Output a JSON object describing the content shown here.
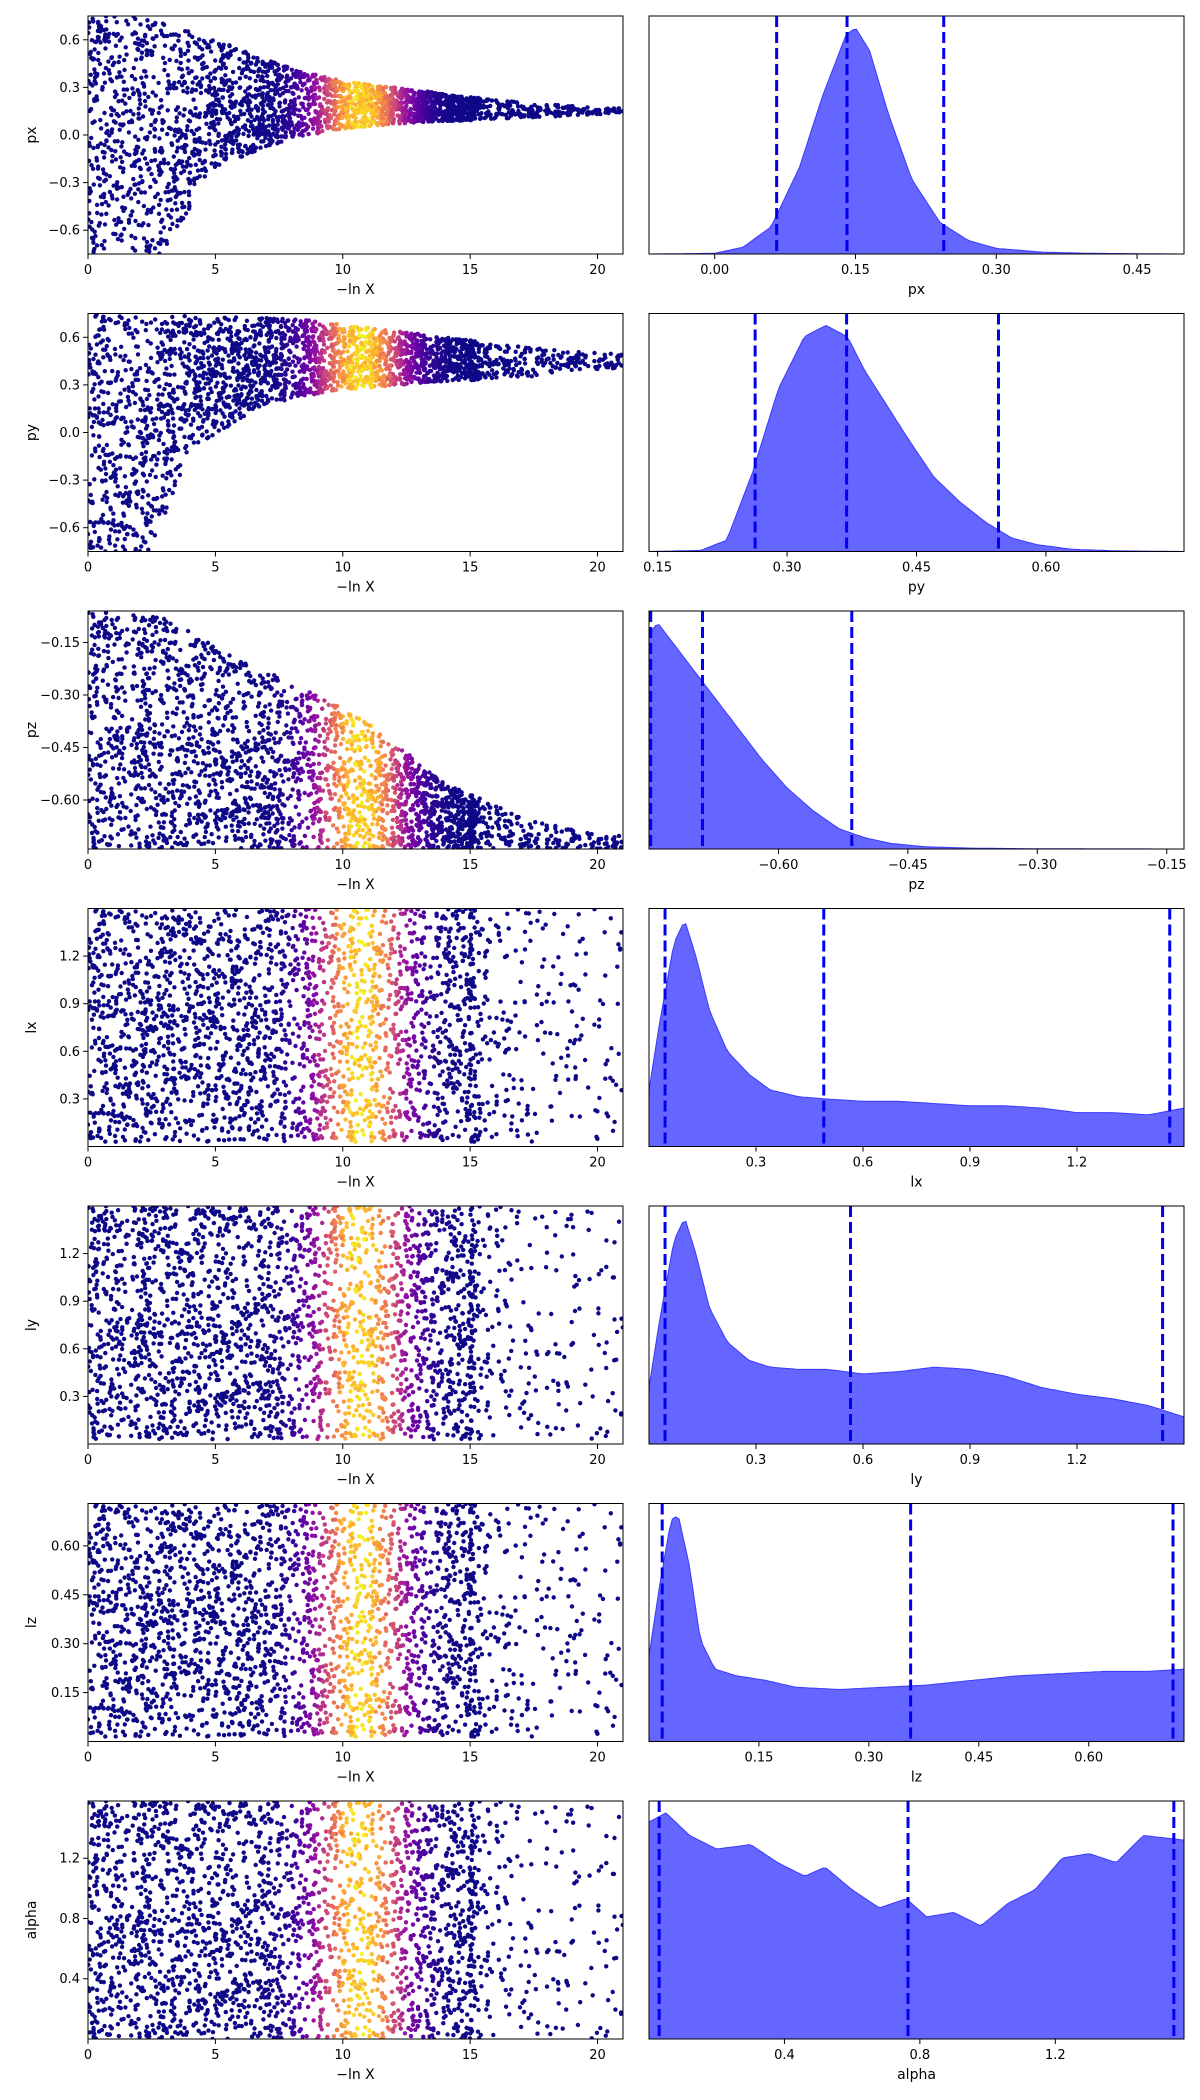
{
  "chart_data": [
    {
      "type": "scatter",
      "param": "px",
      "xlabel": "−ln X",
      "ylabel": "px",
      "xlim": [
        0,
        21
      ],
      "ylim": [
        -0.75,
        0.75
      ],
      "xticks": [
        0,
        5,
        10,
        15,
        20
      ],
      "yticks": [
        -0.6,
        -0.3,
        0.0,
        0.3,
        0.6
      ],
      "ytick_labels": [
        "−0.6",
        "−0.3",
        "0.0",
        "0.3",
        "0.6"
      ],
      "band_center": [
        0,
        0
      ],
      "band_upper": [
        [
          0,
          0.75
        ],
        [
          2,
          0.75
        ],
        [
          5,
          0.6
        ],
        [
          8,
          0.42
        ],
        [
          10,
          0.34
        ],
        [
          13,
          0.28
        ],
        [
          16,
          0.22
        ],
        [
          20,
          0.17
        ]
      ],
      "band_lower": [
        [
          0,
          -0.75
        ],
        [
          3,
          -0.75
        ],
        [
          5,
          -0.2
        ],
        [
          8,
          -0.02
        ],
        [
          10,
          0.04
        ],
        [
          13,
          0.08
        ],
        [
          16,
          0.1
        ],
        [
          20,
          0.13
        ]
      ],
      "color_scale": "colored by posterior weight (plasma)"
    },
    {
      "type": "area",
      "param": "px",
      "xlabel": "px",
      "xlim": [
        -0.07,
        0.5
      ],
      "xticks": [
        0.0,
        0.15,
        0.3,
        0.45
      ],
      "xtick_labels": [
        "0.00",
        "0.15",
        "0.30",
        "0.45"
      ],
      "density": [
        [
          -0.07,
          0
        ],
        [
          0.0,
          0.003
        ],
        [
          0.03,
          0.03
        ],
        [
          0.06,
          0.12
        ],
        [
          0.09,
          0.38
        ],
        [
          0.115,
          0.7
        ],
        [
          0.14,
          0.97
        ],
        [
          0.15,
          1.0
        ],
        [
          0.165,
          0.9
        ],
        [
          0.185,
          0.62
        ],
        [
          0.21,
          0.33
        ],
        [
          0.24,
          0.14
        ],
        [
          0.27,
          0.06
        ],
        [
          0.3,
          0.025
        ],
        [
          0.35,
          0.008
        ],
        [
          0.4,
          0.003
        ],
        [
          0.5,
          0
        ]
      ],
      "quantiles": [
        0.066,
        0.141,
        0.244
      ],
      "quantile_color": "#0000ee",
      "fill_color": "#6565ff"
    },
    {
      "type": "scatter",
      "param": "py",
      "xlabel": "−ln X",
      "ylabel": "py",
      "xlim": [
        0,
        21
      ],
      "ylim": [
        -0.75,
        0.75
      ],
      "xticks": [
        0,
        5,
        10,
        15,
        20
      ],
      "yticks": [
        -0.6,
        -0.3,
        0.0,
        0.3,
        0.6
      ],
      "ytick_labels": [
        "−0.6",
        "−0.3",
        "0.0",
        "0.3",
        "0.6"
      ],
      "band_upper": [
        [
          0,
          0.75
        ],
        [
          8,
          0.72
        ],
        [
          11,
          0.66
        ],
        [
          14,
          0.6
        ],
        [
          17,
          0.54
        ],
        [
          20,
          0.5
        ]
      ],
      "band_lower": [
        [
          0,
          -0.75
        ],
        [
          2.5,
          -0.75
        ],
        [
          4,
          -0.1
        ],
        [
          7,
          0.18
        ],
        [
          10,
          0.27
        ],
        [
          14,
          0.32
        ],
        [
          18,
          0.36
        ],
        [
          20,
          0.4
        ]
      ],
      "color_scale": "colored by posterior weight (plasma)"
    },
    {
      "type": "area",
      "param": "py",
      "xlabel": "py",
      "xlim": [
        0.14,
        0.76
      ],
      "xticks": [
        0.15,
        0.3,
        0.45,
        0.6
      ],
      "xtick_labels": [
        "0.15",
        "0.30",
        "0.45",
        "0.60"
      ],
      "density": [
        [
          0.14,
          0
        ],
        [
          0.2,
          0.005
        ],
        [
          0.23,
          0.05
        ],
        [
          0.26,
          0.35
        ],
        [
          0.29,
          0.72
        ],
        [
          0.32,
          0.95
        ],
        [
          0.345,
          1.0
        ],
        [
          0.37,
          0.95
        ],
        [
          0.39,
          0.8
        ],
        [
          0.41,
          0.68
        ],
        [
          0.44,
          0.5
        ],
        [
          0.47,
          0.33
        ],
        [
          0.5,
          0.22
        ],
        [
          0.53,
          0.13
        ],
        [
          0.56,
          0.06
        ],
        [
          0.59,
          0.03
        ],
        [
          0.63,
          0.01
        ],
        [
          0.68,
          0.003
        ],
        [
          0.76,
          0
        ]
      ],
      "quantiles": [
        0.263,
        0.369,
        0.545
      ],
      "quantile_color": "#0000ee",
      "fill_color": "#6565ff"
    },
    {
      "type": "scatter",
      "param": "pz",
      "xlabel": "−ln X",
      "ylabel": "pz",
      "xlim": [
        0,
        21
      ],
      "ylim": [
        -0.74,
        -0.06
      ],
      "xticks": [
        0,
        5,
        10,
        15,
        20
      ],
      "yticks": [
        -0.6,
        -0.45,
        -0.3,
        -0.15
      ],
      "ytick_labels": [
        "−0.60",
        "−0.45",
        "−0.30",
        "−0.15"
      ],
      "band_upper": [
        [
          0,
          -0.06
        ],
        [
          3,
          -0.08
        ],
        [
          6,
          -0.2
        ],
        [
          9,
          -0.3
        ],
        [
          11,
          -0.38
        ],
        [
          14,
          -0.55
        ],
        [
          17,
          -0.65
        ],
        [
          20,
          -0.7
        ]
      ],
      "band_lower": [
        [
          0,
          -0.74
        ],
        [
          20,
          -0.74
        ]
      ],
      "color_scale": "colored by posterior weight (plasma)"
    },
    {
      "type": "area",
      "param": "pz",
      "xlabel": "pz",
      "xlim": [
        -0.75,
        -0.13
      ],
      "xticks": [
        -0.6,
        -0.45,
        -0.3,
        -0.15
      ],
      "xtick_labels": [
        "−0.60",
        "−0.45",
        "−0.30",
        "−0.15"
      ],
      "density": [
        [
          -0.75,
          0.95
        ],
        [
          -0.74,
          1.0
        ],
        [
          -0.72,
          0.9
        ],
        [
          -0.7,
          0.8
        ],
        [
          -0.68,
          0.7
        ],
        [
          -0.65,
          0.55
        ],
        [
          -0.62,
          0.4
        ],
        [
          -0.59,
          0.27
        ],
        [
          -0.56,
          0.17
        ],
        [
          -0.53,
          0.09
        ],
        [
          -0.5,
          0.05
        ],
        [
          -0.47,
          0.025
        ],
        [
          -0.43,
          0.01
        ],
        [
          -0.38,
          0.004
        ],
        [
          -0.3,
          0.001
        ],
        [
          -0.13,
          0
        ]
      ],
      "quantiles": [
        -0.748,
        -0.688,
        -0.515
      ],
      "quantile_color": "#0000ee",
      "fill_color": "#6565ff"
    },
    {
      "type": "scatter",
      "param": "lx",
      "xlabel": "−ln X",
      "ylabel": "lx",
      "xlim": [
        0,
        21
      ],
      "ylim": [
        0,
        1.5
      ],
      "xticks": [
        0,
        5,
        10,
        15,
        20
      ],
      "yticks": [
        0.3,
        0.6,
        0.9,
        1.2
      ],
      "ytick_labels": [
        "0.3",
        "0.6",
        "0.9",
        "1.2"
      ],
      "band_upper": [
        [
          0,
          1.5
        ],
        [
          20,
          1.5
        ]
      ],
      "band_lower": [
        [
          0,
          0.03
        ],
        [
          20,
          0.03
        ]
      ],
      "color_scale": "colored by posterior weight (plasma)"
    },
    {
      "type": "area",
      "param": "lx",
      "xlabel": "lx",
      "xlim": [
        0.0,
        1.5
      ],
      "xticks": [
        0.3,
        0.6,
        0.9,
        1.2
      ],
      "xtick_labels": [
        "0.3",
        "0.6",
        "0.9",
        "1.2"
      ],
      "density": [
        [
          0.0,
          0.25
        ],
        [
          0.03,
          0.55
        ],
        [
          0.07,
          0.9
        ],
        [
          0.1,
          1.0
        ],
        [
          0.13,
          0.85
        ],
        [
          0.17,
          0.6
        ],
        [
          0.22,
          0.42
        ],
        [
          0.28,
          0.32
        ],
        [
          0.34,
          0.25
        ],
        [
          0.42,
          0.22
        ],
        [
          0.5,
          0.21
        ],
        [
          0.6,
          0.2
        ],
        [
          0.7,
          0.2
        ],
        [
          0.8,
          0.19
        ],
        [
          0.9,
          0.18
        ],
        [
          1.0,
          0.18
        ],
        [
          1.1,
          0.17
        ],
        [
          1.2,
          0.15
        ],
        [
          1.3,
          0.15
        ],
        [
          1.4,
          0.14
        ],
        [
          1.5,
          0.17
        ]
      ],
      "quantiles": [
        0.045,
        0.49,
        1.46
      ],
      "quantile_color": "#0000ee",
      "fill_color": "#6565ff"
    },
    {
      "type": "scatter",
      "param": "ly",
      "xlabel": "−ln X",
      "ylabel": "ly",
      "xlim": [
        0,
        21
      ],
      "ylim": [
        0,
        1.5
      ],
      "xticks": [
        0,
        5,
        10,
        15,
        20
      ],
      "yticks": [
        0.3,
        0.6,
        0.9,
        1.2
      ],
      "ytick_labels": [
        "0.3",
        "0.6",
        "0.9",
        "1.2"
      ],
      "band_upper": [
        [
          0,
          1.5
        ],
        [
          20,
          1.5
        ]
      ],
      "band_lower": [
        [
          0,
          0.03
        ],
        [
          20,
          0.03
        ]
      ],
      "color_scale": "colored by posterior weight (plasma)"
    },
    {
      "type": "area",
      "param": "ly",
      "xlabel": "ly",
      "xlim": [
        0.0,
        1.5
      ],
      "xticks": [
        0.3,
        0.6,
        0.9,
        1.2
      ],
      "xtick_labels": [
        "0.3",
        "0.6",
        "0.9",
        "1.2"
      ],
      "density": [
        [
          0.0,
          0.25
        ],
        [
          0.03,
          0.55
        ],
        [
          0.07,
          0.9
        ],
        [
          0.1,
          1.0
        ],
        [
          0.13,
          0.85
        ],
        [
          0.17,
          0.6
        ],
        [
          0.22,
          0.45
        ],
        [
          0.28,
          0.37
        ],
        [
          0.34,
          0.34
        ],
        [
          0.42,
          0.33
        ],
        [
          0.5,
          0.33
        ],
        [
          0.6,
          0.31
        ],
        [
          0.7,
          0.32
        ],
        [
          0.8,
          0.34
        ],
        [
          0.9,
          0.33
        ],
        [
          1.0,
          0.3
        ],
        [
          1.1,
          0.25
        ],
        [
          1.2,
          0.22
        ],
        [
          1.3,
          0.2
        ],
        [
          1.4,
          0.17
        ],
        [
          1.5,
          0.12
        ]
      ],
      "quantiles": [
        0.045,
        0.565,
        1.44
      ],
      "quantile_color": "#0000ee",
      "fill_color": "#6565ff"
    },
    {
      "type": "scatter",
      "param": "lz",
      "xlabel": "−ln X",
      "ylabel": "lz",
      "xlim": [
        0,
        21
      ],
      "ylim": [
        0,
        0.73
      ],
      "xticks": [
        0,
        5,
        10,
        15,
        20
      ],
      "yticks": [
        0.15,
        0.3,
        0.45,
        0.6
      ],
      "ytick_labels": [
        "0.15",
        "0.30",
        "0.45",
        "0.60"
      ],
      "band_upper": [
        [
          0,
          0.73
        ],
        [
          20,
          0.73
        ]
      ],
      "band_lower": [
        [
          0,
          0.015
        ],
        [
          20,
          0.015
        ]
      ],
      "color_scale": "colored by posterior weight (plasma)"
    },
    {
      "type": "area",
      "param": "lz",
      "xlabel": "lz",
      "xlim": [
        0.0,
        0.73
      ],
      "xticks": [
        0.15,
        0.3,
        0.45,
        0.6
      ],
      "xtick_labels": [
        "0.15",
        "0.30",
        "0.45",
        "0.60"
      ],
      "density": [
        [
          0.0,
          0.38
        ],
        [
          0.015,
          0.7
        ],
        [
          0.03,
          0.98
        ],
        [
          0.04,
          1.0
        ],
        [
          0.055,
          0.78
        ],
        [
          0.07,
          0.45
        ],
        [
          0.09,
          0.32
        ],
        [
          0.12,
          0.29
        ],
        [
          0.16,
          0.27
        ],
        [
          0.2,
          0.24
        ],
        [
          0.26,
          0.23
        ],
        [
          0.32,
          0.24
        ],
        [
          0.38,
          0.25
        ],
        [
          0.44,
          0.27
        ],
        [
          0.5,
          0.29
        ],
        [
          0.56,
          0.3
        ],
        [
          0.62,
          0.31
        ],
        [
          0.68,
          0.31
        ],
        [
          0.73,
          0.32
        ]
      ],
      "quantiles": [
        0.018,
        0.357,
        0.715
      ],
      "quantile_color": "#0000ee",
      "fill_color": "#6565ff"
    },
    {
      "type": "scatter",
      "param": "alpha",
      "xlabel": "−ln X",
      "ylabel": "alpha",
      "xlim": [
        0,
        21
      ],
      "ylim": [
        0,
        1.58
      ],
      "xticks": [
        0,
        5,
        10,
        15,
        20
      ],
      "yticks": [
        0.4,
        0.8,
        1.2
      ],
      "ytick_labels": [
        "0.4",
        "0.8",
        "1.2"
      ],
      "band_upper": [
        [
          0,
          1.58
        ],
        [
          20,
          1.58
        ]
      ],
      "band_lower": [
        [
          0,
          0.0
        ],
        [
          20,
          0.0
        ]
      ],
      "color_scale": "colored by posterior weight (plasma)"
    },
    {
      "type": "area",
      "param": "alpha",
      "xlabel": "alpha",
      "xlim": [
        0.0,
        1.58
      ],
      "xticks": [
        0.4,
        0.8,
        1.2
      ],
      "xtick_labels": [
        "0.4",
        "0.8",
        "1.2"
      ],
      "density": [
        [
          0.0,
          0.96
        ],
        [
          0.05,
          1.0
        ],
        [
          0.12,
          0.9
        ],
        [
          0.2,
          0.84
        ],
        [
          0.3,
          0.86
        ],
        [
          0.38,
          0.78
        ],
        [
          0.46,
          0.72
        ],
        [
          0.52,
          0.76
        ],
        [
          0.6,
          0.66
        ],
        [
          0.68,
          0.58
        ],
        [
          0.76,
          0.62
        ],
        [
          0.82,
          0.54
        ],
        [
          0.9,
          0.56
        ],
        [
          0.98,
          0.5
        ],
        [
          1.06,
          0.6
        ],
        [
          1.14,
          0.66
        ],
        [
          1.22,
          0.8
        ],
        [
          1.3,
          0.82
        ],
        [
          1.38,
          0.78
        ],
        [
          1.46,
          0.9
        ],
        [
          1.58,
          0.88
        ]
      ],
      "quantiles": [
        0.03,
        0.765,
        1.55
      ],
      "quantile_color": "#0000ee",
      "fill_color": "#6565ff"
    }
  ]
}
